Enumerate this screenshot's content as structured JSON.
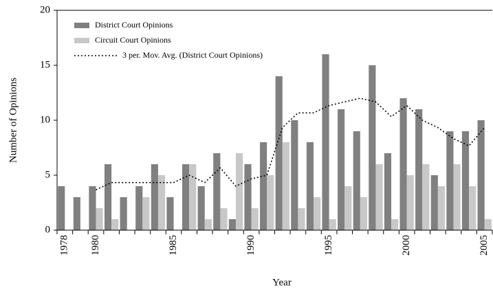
{
  "chart_data": {
    "type": "bar",
    "xlabel": "Year",
    "ylabel": "Number of Opinions",
    "categories": [
      "1978",
      null,
      "1980",
      null,
      null,
      null,
      null,
      "1985",
      null,
      null,
      null,
      null,
      "1990",
      null,
      null,
      null,
      null,
      "1995",
      null,
      null,
      null,
      null,
      "2000",
      null,
      null,
      null,
      null,
      "2005"
    ],
    "series": [
      {
        "name": "District Court Opinions",
        "type": "bar",
        "color": "#808080",
        "values": [
          4,
          3,
          4,
          6,
          3,
          4,
          6,
          3,
          6,
          4,
          7,
          1,
          6,
          8,
          14,
          10,
          8,
          16,
          11,
          9,
          15,
          7,
          12,
          11,
          5,
          9,
          9,
          10
        ]
      },
      {
        "name": "Circuit Court Opinions",
        "type": "bar",
        "color": "#c8c8c8",
        "values": [
          0,
          0,
          2,
          1,
          0,
          3,
          5,
          0,
          6,
          1,
          2,
          7,
          2,
          5,
          8,
          2,
          3,
          1,
          4,
          3,
          6,
          1,
          5,
          6,
          4,
          6,
          4,
          1
        ]
      },
      {
        "name": "3 per. Mov. Avg. (District Court Opinions)",
        "type": "line",
        "color": "#000000",
        "values": [
          null,
          null,
          3.67,
          4.33,
          4.33,
          4.33,
          4.33,
          4.33,
          5,
          4.33,
          5.67,
          4,
          4.67,
          5,
          9.33,
          10.67,
          10.67,
          11.33,
          11.67,
          12,
          11.67,
          10.33,
          11.33,
          10,
          9.33,
          8.33,
          7.67,
          9.33
        ]
      }
    ],
    "ylim": [
      0,
      20
    ],
    "yticks": [
      0,
      5,
      10,
      15,
      20
    ],
    "grid": false,
    "legend": "top-left"
  }
}
